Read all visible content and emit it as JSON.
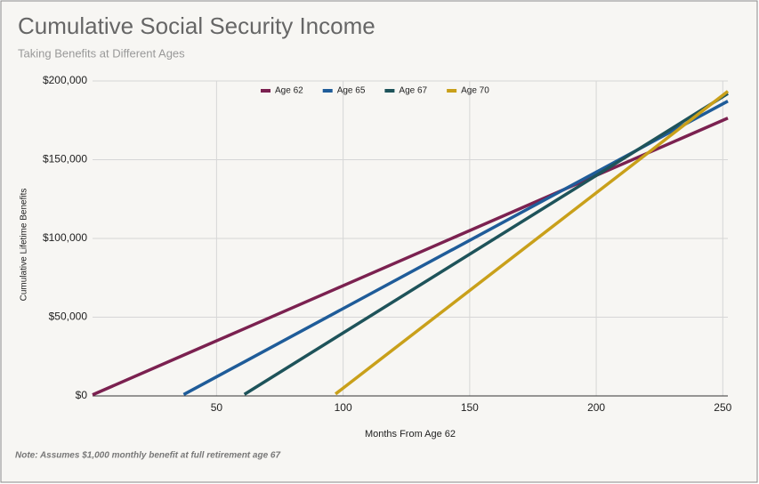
{
  "chart_data": {
    "type": "line",
    "title": "Cumulative Social Security Income",
    "subtitle": "Taking Benefits at Different Ages",
    "x_label": "Months From Age 62",
    "y_label": "Cumulative Lifetime Benefits",
    "note": "Note: Assumes $1,000 monthly benefit at full retirement age 67",
    "x": [
      1,
      37,
      61,
      97,
      252
    ],
    "series": [
      {
        "name": "Age 62",
        "color": "#7b2150",
        "values": [
          700,
          25900,
          42700,
          67900,
          176400
        ]
      },
      {
        "name": "Age 65",
        "color": "#1f5c99",
        "values": [
          null,
          867,
          21667,
          52867,
          187200
        ]
      },
      {
        "name": "Age 67",
        "color": "#1e535a",
        "values": [
          null,
          null,
          1000,
          37000,
          192000
        ]
      },
      {
        "name": "Age 70",
        "color": "#c9a01a",
        "values": [
          null,
          null,
          null,
          1240,
          193440
        ]
      }
    ],
    "xlim": [
      1,
      252
    ],
    "xticks": [
      50,
      100,
      150,
      200,
      250
    ],
    "ylim": [
      0,
      200000
    ],
    "yticks": [
      {
        "value": 0,
        "label": "$0"
      },
      {
        "value": 50000,
        "label": "$50,000"
      },
      {
        "value": 100000,
        "label": "$100,000"
      },
      {
        "value": 150000,
        "label": "$150,000"
      },
      {
        "value": 200000,
        "label": "$200,000"
      }
    ],
    "grid": true,
    "legend": "top"
  }
}
